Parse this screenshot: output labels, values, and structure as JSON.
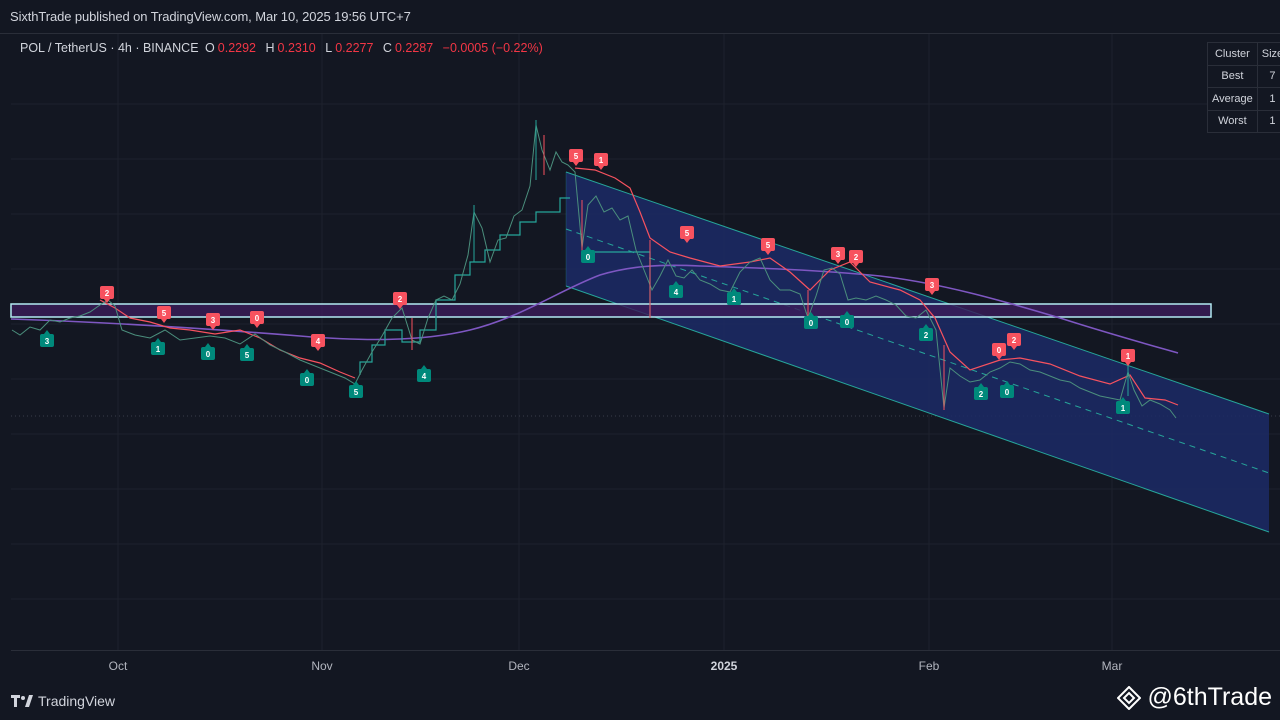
{
  "header": {
    "published_by": "SixthTrade published on TradingView.com, Mar 10, 2025 19:56 UTC+7"
  },
  "legend": {
    "symbol": "POL / TetherUS · 4h · BINANCE",
    "open_label": "O",
    "open": "0.2292",
    "high_label": "H",
    "high": "0.2310",
    "low_label": "L",
    "low": "0.2277",
    "close_label": "C",
    "close": "0.2287",
    "change": "−0.0005 (−0.22%)"
  },
  "cluster_table": {
    "header": [
      "Cluster",
      "Size"
    ],
    "rows": [
      [
        "Best",
        "7"
      ],
      [
        "Average",
        "1"
      ],
      [
        "Worst",
        "1"
      ]
    ]
  },
  "x_axis": {
    "ticks": [
      {
        "label": "Oct",
        "bold": false
      },
      {
        "label": "Nov",
        "bold": false
      },
      {
        "label": "Dec",
        "bold": false
      },
      {
        "label": "2025",
        "bold": true
      },
      {
        "label": "Feb",
        "bold": false
      },
      {
        "label": "Mar",
        "bold": false
      }
    ]
  },
  "footer": {
    "brand": "TradingView",
    "watermark": "@6thTrade"
  },
  "colors": {
    "background": "#131722",
    "grid": "#1e222d",
    "sell_signal": "#f7525f",
    "buy_signal": "#00897b",
    "channel_fill": "#1c2a66",
    "channel_line": "#26a69a",
    "zone_fill": "#3b1d5a",
    "zone_border": "#b2ebf2",
    "moving_average": "#7e57c2",
    "trailing_stop_down": "#f7525f",
    "trailing_stop_up": "#26a69a"
  },
  "signals": {
    "sell": [
      "2",
      "5",
      "3",
      "0",
      "4",
      "2",
      "5",
      "1",
      "5",
      "5",
      "3",
      "2",
      "3",
      "0",
      "2",
      "1"
    ],
    "buy": [
      "3",
      "1",
      "0",
      "5",
      "0",
      "5",
      "4",
      "0",
      "4",
      "1",
      "0",
      "0",
      "2",
      "2",
      "0",
      "1"
    ]
  }
}
